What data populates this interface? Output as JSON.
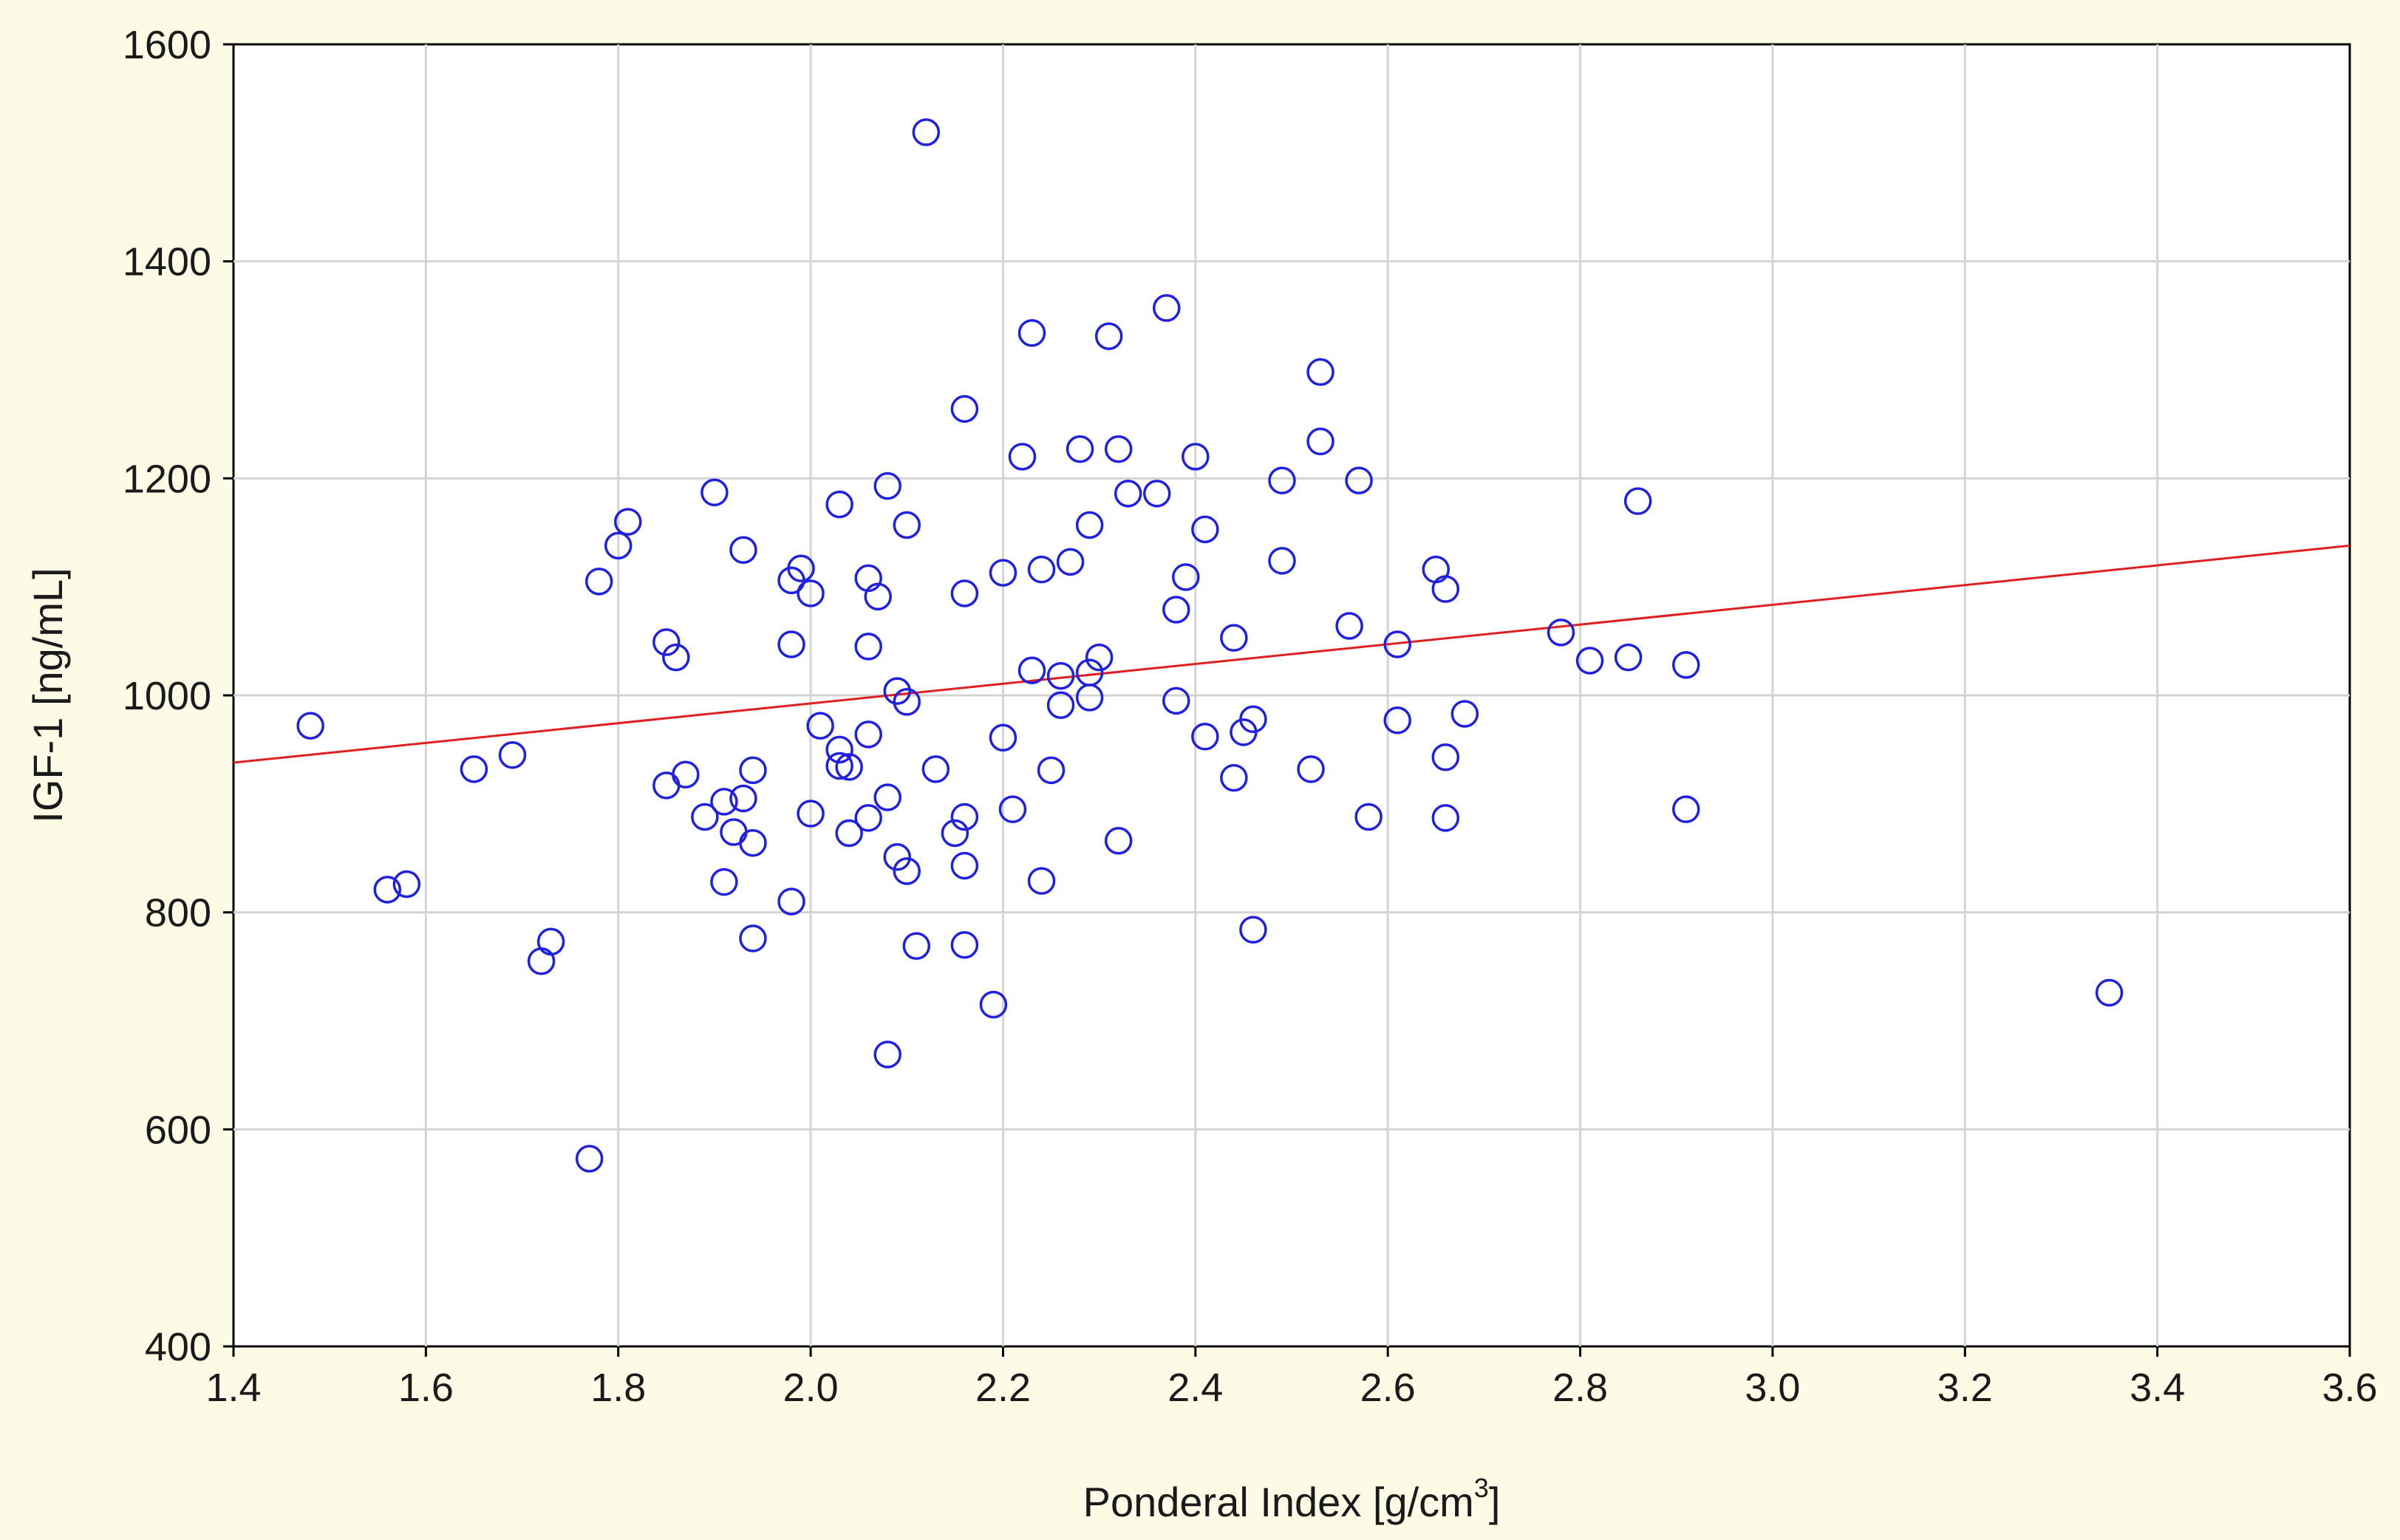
{
  "chart_data": {
    "type": "scatter",
    "title": "",
    "xlabel": "Ponderal Index [g/cm",
    "xlabel_superscript": "3",
    "xlabel_suffix": "]",
    "ylabel": "IGF-1 [ng/mL]",
    "xlim": [
      1.4,
      3.6
    ],
    "ylim": [
      400,
      1600
    ],
    "xticks": [
      "1.4",
      "1.6",
      "1.8",
      "2.0",
      "2.2",
      "2.4",
      "2.6",
      "2.8",
      "3.0",
      "3.2",
      "3.4",
      "3.6"
    ],
    "yticks": [
      "400",
      "600",
      "800",
      "1000",
      "1200",
      "1400",
      "1600"
    ],
    "grid": true,
    "legend": "none",
    "marker_color": "#2020e0",
    "fit_line_color": "#e02020",
    "fit_line": {
      "x": [
        1.4,
        3.6
      ],
      "y": [
        938,
        1138
      ]
    },
    "points": [
      [
        1.48,
        972
      ],
      [
        1.56,
        821
      ],
      [
        1.58,
        826
      ],
      [
        1.65,
        932
      ],
      [
        1.69,
        945
      ],
      [
        1.72,
        755
      ],
      [
        1.73,
        773
      ],
      [
        1.77,
        573
      ],
      [
        1.78,
        1105
      ],
      [
        1.8,
        1138
      ],
      [
        1.81,
        1160
      ],
      [
        1.85,
        917
      ],
      [
        1.85,
        1049
      ],
      [
        1.86,
        1035
      ],
      [
        1.87,
        927
      ],
      [
        1.89,
        888
      ],
      [
        1.9,
        1187
      ],
      [
        1.91,
        902
      ],
      [
        1.91,
        828
      ],
      [
        1.92,
        874
      ],
      [
        1.93,
        905
      ],
      [
        1.93,
        1134
      ],
      [
        1.94,
        864
      ],
      [
        1.94,
        931
      ],
      [
        1.94,
        776
      ],
      [
        1.98,
        1106
      ],
      [
        1.98,
        810
      ],
      [
        1.98,
        1047
      ],
      [
        1.99,
        1117
      ],
      [
        2.0,
        891
      ],
      [
        2.0,
        1094
      ],
      [
        2.01,
        972
      ],
      [
        2.03,
        950
      ],
      [
        2.03,
        935
      ],
      [
        2.03,
        1176
      ],
      [
        2.04,
        873
      ],
      [
        2.04,
        934
      ],
      [
        2.06,
        887
      ],
      [
        2.06,
        1045
      ],
      [
        2.06,
        964
      ],
      [
        2.06,
        1108
      ],
      [
        2.07,
        1091
      ],
      [
        2.08,
        1193
      ],
      [
        2.08,
        906
      ],
      [
        2.08,
        669
      ],
      [
        2.09,
        1004
      ],
      [
        2.09,
        851
      ],
      [
        2.1,
        838
      ],
      [
        2.1,
        994
      ],
      [
        2.1,
        1157
      ],
      [
        2.11,
        769
      ],
      [
        2.12,
        1519
      ],
      [
        2.13,
        932
      ],
      [
        2.15,
        873
      ],
      [
        2.16,
        843
      ],
      [
        2.16,
        888
      ],
      [
        2.16,
        1094
      ],
      [
        2.16,
        1264
      ],
      [
        2.16,
        770
      ],
      [
        2.19,
        715
      ],
      [
        2.2,
        961
      ],
      [
        2.2,
        1113
      ],
      [
        2.21,
        895
      ],
      [
        2.22,
        1220
      ],
      [
        2.23,
        1334
      ],
      [
        2.23,
        1023
      ],
      [
        2.24,
        1116
      ],
      [
        2.24,
        829
      ],
      [
        2.25,
        931
      ],
      [
        2.26,
        991
      ],
      [
        2.26,
        1018
      ],
      [
        2.27,
        1123
      ],
      [
        2.28,
        1227
      ],
      [
        2.29,
        998
      ],
      [
        2.29,
        1157
      ],
      [
        2.29,
        1021
      ],
      [
        2.3,
        1035
      ],
      [
        2.31,
        1331
      ],
      [
        2.32,
        1227
      ],
      [
        2.32,
        866
      ],
      [
        2.33,
        1186
      ],
      [
        2.36,
        1186
      ],
      [
        2.37,
        1357
      ],
      [
        2.38,
        995
      ],
      [
        2.38,
        1079
      ],
      [
        2.39,
        1109
      ],
      [
        2.4,
        1220
      ],
      [
        2.41,
        962
      ],
      [
        2.41,
        1153
      ],
      [
        2.44,
        1053
      ],
      [
        2.44,
        924
      ],
      [
        2.45,
        966
      ],
      [
        2.46,
        978
      ],
      [
        2.46,
        784
      ],
      [
        2.49,
        1198
      ],
      [
        2.49,
        1124
      ],
      [
        2.52,
        932
      ],
      [
        2.53,
        1298
      ],
      [
        2.53,
        1234
      ],
      [
        2.56,
        1064
      ],
      [
        2.57,
        1198
      ],
      [
        2.58,
        888
      ],
      [
        2.61,
        1047
      ],
      [
        2.61,
        977
      ],
      [
        2.65,
        1116
      ],
      [
        2.66,
        1098
      ],
      [
        2.66,
        943
      ],
      [
        2.66,
        887
      ],
      [
        2.68,
        983
      ],
      [
        2.78,
        1058
      ],
      [
        2.81,
        1032
      ],
      [
        2.85,
        1035
      ],
      [
        2.86,
        1179
      ],
      [
        2.91,
        1028
      ],
      [
        2.91,
        895
      ],
      [
        3.35,
        726
      ]
    ]
  }
}
